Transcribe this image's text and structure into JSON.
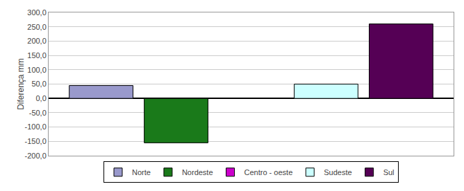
{
  "chart_data": {
    "type": "bar",
    "categories": [
      "Norte",
      "Nordeste",
      "Centro - oeste",
      "Sudeste",
      "Sul"
    ],
    "values": [
      45,
      -155,
      0,
      50,
      260
    ],
    "colors": [
      "#9999CC",
      "#1A7A1A",
      "#CC00CC",
      "#CCFFFF",
      "#550055"
    ],
    "ylabel": "Diferença mm",
    "ylim": [
      -200,
      300
    ],
    "yticks": [
      {
        "value": -200,
        "label": "-200,0"
      },
      {
        "value": -150,
        "label": "-150,0"
      },
      {
        "value": -100,
        "label": "-100,0"
      },
      {
        "value": -50,
        "label": "-50,0"
      },
      {
        "value": 0,
        "label": "0,0"
      },
      {
        "value": 50,
        "label": "50,0"
      },
      {
        "value": 100,
        "label": "100,0"
      },
      {
        "value": 150,
        "label": "150,0"
      },
      {
        "value": 200,
        "label": "200,0"
      },
      {
        "value": 250,
        "label": "250,0"
      },
      {
        "value": 300,
        "label": "300,0"
      }
    ],
    "grid": true,
    "legend": "bottom",
    "tick_labels": "y"
  }
}
